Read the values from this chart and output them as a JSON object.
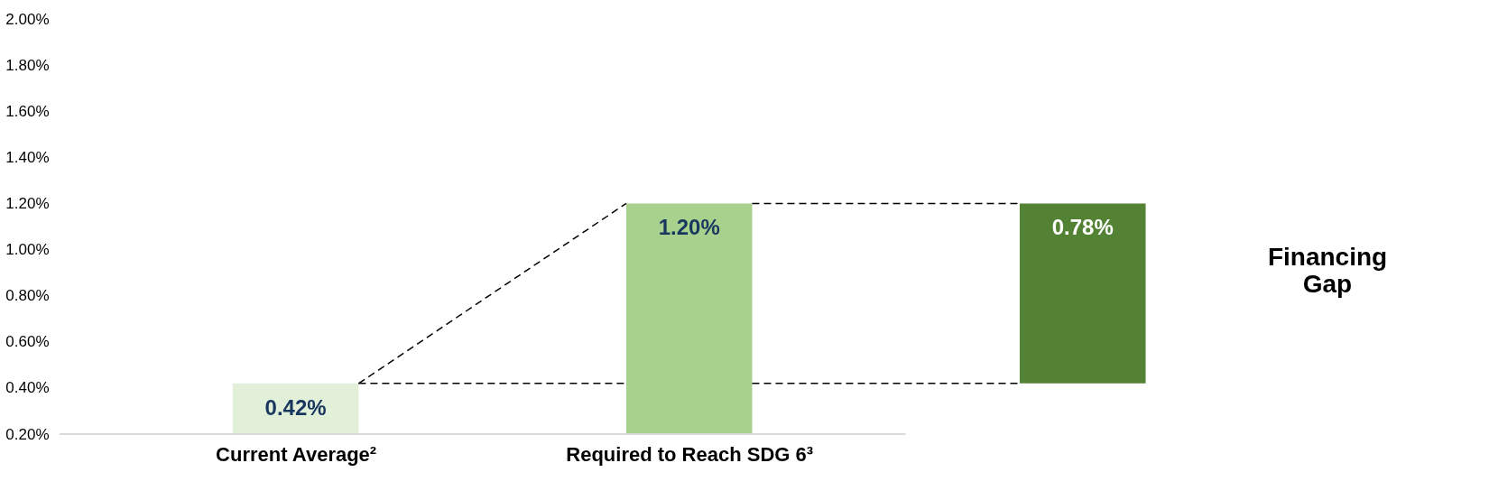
{
  "chart_data": {
    "type": "bar",
    "categories": [
      "Current Average²",
      "Required to Reach SDG 6³",
      null
    ],
    "values": [
      0.42,
      1.2,
      0.78
    ],
    "base": [
      0,
      0,
      0.42
    ],
    "colors": [
      "#e2efd9",
      "#a9d18e",
      "#548235"
    ],
    "value_labels": [
      "0.42%",
      "1.20%",
      "0.78%"
    ],
    "ylim": [
      0.2,
      2.0
    ],
    "yticks": [
      {
        "value": 0.2,
        "label": "0.20%"
      },
      {
        "value": 0.4,
        "label": "0.40%"
      },
      {
        "value": 0.6,
        "label": "0.60%"
      },
      {
        "value": 0.8,
        "label": "0.80%"
      },
      {
        "value": 1.0,
        "label": "1.00%"
      },
      {
        "value": 1.2,
        "label": "1.20%"
      },
      {
        "value": 1.4,
        "label": "1.40%"
      },
      {
        "value": 1.6,
        "label": "1.60%"
      },
      {
        "value": 1.8,
        "label": "1.80%"
      },
      {
        "value": 2.0,
        "label": "2.00%"
      }
    ],
    "annotations": [
      "Financing Gap"
    ],
    "ref_lines": [
      {
        "axis": "y",
        "value": 0.42,
        "label": null,
        "color": "#000000",
        "line_style": "dashed"
      },
      {
        "axis": "y",
        "value": 1.2,
        "label": null,
        "color": "#000000",
        "line_style": "dashed"
      }
    ],
    "line_style": "dashed",
    "grid": false
  }
}
